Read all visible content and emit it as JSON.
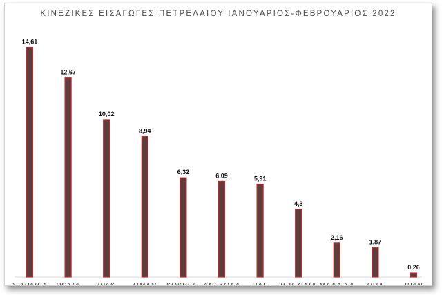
{
  "chart_data": {
    "type": "bar",
    "title": "ΚΙΝΕΖΙΚΕΣ ΕΙΣΑΓΩΓΕΣ ΠΕΤΡΕΛΑΙΟΥ ΙΑΝΟΥΑΡΙΟΣ-ΦΕΒΡΟΥΑΡΙΟΣ 2022",
    "xlabel": "",
    "ylabel": "",
    "categories": [
      "Σ.ΑΡΑΒΙΑ",
      "ΡΩΣΙΑ",
      "ΙΡΑΚ",
      "ΟΜΑΝ",
      "ΚΟΥΒΕΙΤ",
      "ΑΝΓΚΟΛΑ",
      "ΗΑΕ",
      "ΒΡΑΖΙΛΙΑ",
      "ΜΑΛΑΙΣΑ",
      "ΗΠΑ",
      "ΙΡΑΝ"
    ],
    "values": [
      14.61,
      12.67,
      10.02,
      8.94,
      6.32,
      6.09,
      5.91,
      4.3,
      2.16,
      1.87,
      0.26
    ],
    "value_labels": [
      "14,61",
      "12,67",
      "10,02",
      "8,94",
      "6,32",
      "6,09",
      "5,91",
      "4,3",
      "2,16",
      "1,87",
      "0,26"
    ],
    "ylim": [
      0,
      15.6
    ],
    "grid": false,
    "legend": "none",
    "colors": {
      "bar_fill": "#5e3d3d",
      "bar_edge": "#c0262b",
      "baseline": "#d9d9d9"
    }
  }
}
